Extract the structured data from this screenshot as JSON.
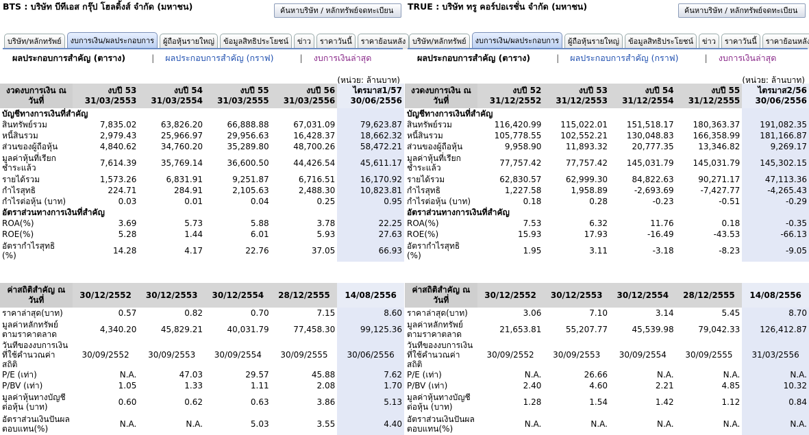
{
  "panels": [
    {
      "title": "BTS : บริษัท บีทีเอส กรุ๊ป โฮลดิ้งส์ จำกัด (มหาชน)",
      "search_button": "ค้นหาบริษัท / หลักทรัพย์จดทะเบียน",
      "tabs": [
        "บริษัท/หลักทรัพย์",
        "งบการเงิน/ผลประกอบการ",
        "ผู้ถือหุ้นรายใหญ่",
        "ข้อมูลสิทธิประโยชน์",
        "ข่าว",
        "ราคาวันนี้",
        "ราคาย้อนหลัง"
      ],
      "active_tab": 1,
      "subnav": {
        "current": "ผลประกอบการสำคัญ (ตาราง)",
        "graph": "ผลประกอบการสำคัญ (กราฟ)",
        "latest": "งบการเงินล่าสุด",
        "sep": "|"
      },
      "unit": "(หน่วย: ล้านบาท)",
      "fin": {
        "head": "งวดงบการเงิน ณ วันที่",
        "cols": [
          [
            "งบปี 53",
            "31/03/2553"
          ],
          [
            "งบปี 54",
            "31/03/2554"
          ],
          [
            "งบปี 55",
            "31/03/2555"
          ],
          [
            "งบปี 56",
            "31/03/2556"
          ],
          [
            "ไตรมาส1/57",
            "30/06/2556"
          ]
        ],
        "sec1": "บัญชีทางการเงินที่สำคัญ",
        "rows1": [
          [
            "สินทรัพย์รวม",
            "7,835.02",
            "63,826.20",
            "66,888.88",
            "67,031.09",
            "79,623.87"
          ],
          [
            "หนี้สินรวม",
            "2,979.43",
            "25,966.97",
            "29,956.63",
            "16,428.37",
            "18,662.32"
          ],
          [
            "ส่วนของผู้ถือหุ้น",
            "4,840.62",
            "34,760.20",
            "35,289.80",
            "48,700.26",
            "58,472.21"
          ],
          [
            "มูลค่าหุ้นที่เรียกชำระแล้ว",
            "7,614.39",
            "35,769.14",
            "36,600.50",
            "44,426.54",
            "45,611.17"
          ],
          [
            "รายได้รวม",
            "1,573.26",
            "6,831.91",
            "9,251.87",
            "6,716.51",
            "16,170.92"
          ],
          [
            "กำไรสุทธิ",
            "224.71",
            "284.91",
            "2,105.63",
            "2,488.30",
            "10,823.81"
          ],
          [
            "กำไรต่อหุ้น (บาท)",
            "0.03",
            "0.01",
            "0.04",
            "0.25",
            "0.95"
          ]
        ],
        "sec2": "อัตราส่วนทางการเงินที่สำคัญ",
        "rows2": [
          [
            "ROA(%)",
            "3.69",
            "5.73",
            "5.88",
            "3.78",
            "22.25"
          ],
          [
            "ROE(%)",
            "5.28",
            "1.44",
            "6.01",
            "5.93",
            "27.63"
          ],
          [
            "อัตรากำไรสุทธิ (%)",
            "14.28",
            "4.17",
            "22.76",
            "37.05",
            "66.93"
          ]
        ]
      },
      "stat": {
        "head": "ค่าสถิติสำคัญ ณ วันที่",
        "cols": [
          "30/12/2552",
          "30/12/2553",
          "30/12/2554",
          "28/12/2555",
          "14/08/2556"
        ],
        "rows": [
          [
            "ราคาล่าสุด(บาท)",
            "0.57",
            "0.82",
            "0.70",
            "7.15",
            "8.60"
          ],
          [
            "มูลค่าหลักทรัพย์ตามราคาตลาด",
            "4,340.20",
            "45,829.21",
            "40,031.79",
            "77,458.30",
            "99,125.36"
          ],
          [
            "วันที่ของงบการเงินที่ใช้คำนวณค่าสถิติ",
            "30/09/2552",
            "30/09/2553",
            "30/09/2554",
            "30/09/2555",
            "30/06/2556"
          ],
          [
            "P/E (เท่า)",
            "N.A.",
            "47.03",
            "29.57",
            "45.88",
            "7.62"
          ],
          [
            "P/BV (เท่า)",
            "1.05",
            "1.33",
            "1.11",
            "2.08",
            "1.70"
          ],
          [
            "มูลค่าหุ้นทางบัญชีต่อหุ้น (บาท)",
            "0.60",
            "0.62",
            "0.63",
            "3.86",
            "5.13"
          ],
          [
            "อัตราส่วนเงินปันผลตอบแทน(%)",
            "N.A.",
            "N.A.",
            "5.03",
            "3.55",
            "4.40"
          ]
        ]
      }
    },
    {
      "title": "TRUE : บริษัท ทรู คอร์ปอเรชั่น จำกัด (มหาชน)",
      "search_button": "ค้นหาบริษัท / หลักทรัพย์จดทะเบียน",
      "tabs": [
        "บริษัท/หลักทรัพย์",
        "งบการเงิน/ผลประกอบการ",
        "ผู้ถือหุ้นรายใหญ่",
        "ข้อมูลสิทธิประโยชน์",
        "ข่าว",
        "ราคาวันนี้",
        "ราคาย้อนหลัง"
      ],
      "active_tab": 1,
      "subnav": {
        "current": "ผลประกอบการสำคัญ (ตาราง)",
        "graph": "ผลประกอบการสำคัญ (กราฟ)",
        "latest": "งบการเงินล่าสุด",
        "sep": "|"
      },
      "unit": "(หน่วย: ล้านบาท)",
      "fin": {
        "head": "งวดงบการเงิน ณ วันที่",
        "cols": [
          [
            "งบปี 52",
            "31/12/2552"
          ],
          [
            "งบปี 53",
            "31/12/2553"
          ],
          [
            "งบปี 54",
            "31/12/2554"
          ],
          [
            "งบปี 55",
            "31/12/2555"
          ],
          [
            "ไตรมาส2/56",
            "30/06/2556"
          ]
        ],
        "sec1": "บัญชีทางการเงินที่สำคัญ",
        "rows1": [
          [
            "สินทรัพย์รวม",
            "116,420.99",
            "115,022.01",
            "151,518.17",
            "180,363.37",
            "191,082.35"
          ],
          [
            "หนี้สินรวม",
            "105,778.55",
            "102,552.21",
            "130,048.83",
            "166,358.99",
            "181,166.87"
          ],
          [
            "ส่วนของผู้ถือหุ้น",
            "9,958.90",
            "11,893.32",
            "20,777.35",
            "13,346.82",
            "9,269.17"
          ],
          [
            "มูลค่าหุ้นที่เรียกชำระแล้ว",
            "77,757.42",
            "77,757.42",
            "145,031.79",
            "145,031.79",
            "145,302.15"
          ],
          [
            "รายได้รวม",
            "62,830.57",
            "62,999.30",
            "84,822.63",
            "90,271.17",
            "47,113.36"
          ],
          [
            "กำไรสุทธิ",
            "1,227.58",
            "1,958.89",
            "-2,693.69",
            "-7,427.77",
            "-4,265.43"
          ],
          [
            "กำไรต่อหุ้น (บาท)",
            "0.18",
            "0.28",
            "-0.23",
            "-0.51",
            "-0.29"
          ]
        ],
        "sec2": "อัตราส่วนทางการเงินที่สำคัญ",
        "rows2": [
          [
            "ROA(%)",
            "7.53",
            "6.32",
            "11.76",
            "0.18",
            "-0.35"
          ],
          [
            "ROE(%)",
            "15.93",
            "17.93",
            "-16.49",
            "-43.53",
            "-66.13"
          ],
          [
            "อัตรากำไรสุทธิ (%)",
            "1.95",
            "3.11",
            "-3.18",
            "-8.23",
            "-9.05"
          ]
        ]
      },
      "stat": {
        "head": "ค่าสถิติสำคัญ ณ วันที่",
        "cols": [
          "30/12/2552",
          "30/12/2553",
          "30/12/2554",
          "28/12/2555",
          "14/08/2556"
        ],
        "rows": [
          [
            "ราคาล่าสุด(บาท)",
            "3.06",
            "7.10",
            "3.14",
            "5.45",
            "8.70"
          ],
          [
            "มูลค่าหลักทรัพย์ตามราคาตลาด",
            "21,653.81",
            "55,207.77",
            "45,539.98",
            "79,042.33",
            "126,412.87"
          ],
          [
            "วันที่ของงบการเงินที่ใช้คำนวณค่าสถิติ",
            "30/09/2552",
            "30/09/2553",
            "30/09/2554",
            "30/09/2555",
            "31/03/2556"
          ],
          [
            "P/E (เท่า)",
            "N.A.",
            "26.66",
            "N.A.",
            "N.A.",
            "N.A."
          ],
          [
            "P/BV (เท่า)",
            "2.40",
            "4.60",
            "2.21",
            "4.85",
            "10.32"
          ],
          [
            "มูลค่าหุ้นทางบัญชีต่อหุ้น (บาท)",
            "1.28",
            "1.54",
            "1.42",
            "1.12",
            "0.84"
          ],
          [
            "อัตราส่วนเงินปันผลตอบแทน(%)",
            "N.A.",
            "N.A.",
            "N.A.",
            "N.A.",
            "N.A."
          ]
        ]
      }
    }
  ]
}
